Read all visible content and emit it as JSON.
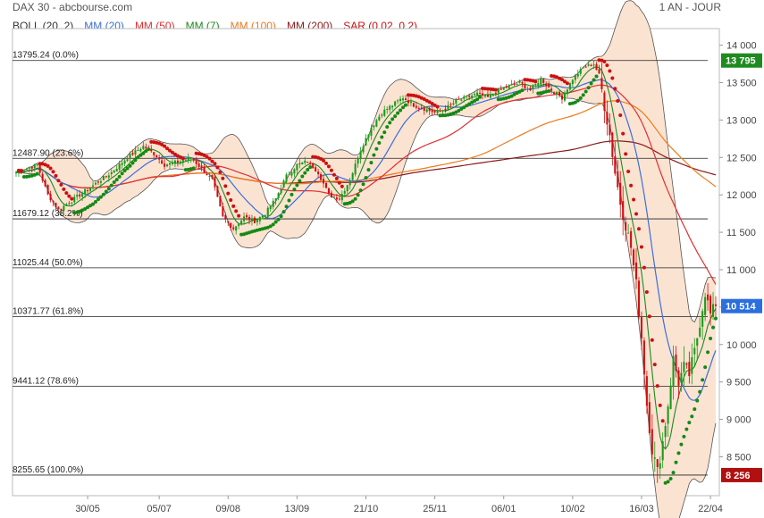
{
  "header": {
    "title": "DAX 30 - abcbourse.com",
    "period": "1 AN - JOUR"
  },
  "legend": [
    {
      "label": "BOLL (20, 2)",
      "color": "#333333"
    },
    {
      "label": "MM (20)",
      "color": "#3a6fd8"
    },
    {
      "label": "MM (50)",
      "color": "#e03030"
    },
    {
      "label": "MM (7)",
      "color": "#1c8a1c"
    },
    {
      "label": "MM (100)",
      "color": "#f07a1a"
    },
    {
      "label": "MM (200)",
      "color": "#8b1a1a"
    },
    {
      "label": "SAR (0.02, 0.2)",
      "color": "#cc1010"
    }
  ],
  "colors": {
    "up": "#1a9a1a",
    "down": "#d01010",
    "band_fill": "#fbe3d2",
    "band_line": "#555555",
    "mm7": "#1c8a1c",
    "mm20": "#3a6fd8",
    "mm50": "#e03030",
    "mm100": "#f07a1a",
    "mm200": "#8b1a1a",
    "sar_up": "#138a13",
    "sar_down": "#cc1010",
    "badge_last": "#2a6ee0",
    "badge_high": "#1f8a1f",
    "badge_low": "#b01010"
  },
  "chart_data": {
    "type": "candlestick",
    "ylim": [
      8100,
      14150
    ],
    "yticks": [
      {
        "value": 14000,
        "label": "14 000"
      },
      {
        "value": 13500,
        "label": "13 500"
      },
      {
        "value": 13000,
        "label": "13 000"
      },
      {
        "value": 12500,
        "label": "12 500"
      },
      {
        "value": 12000,
        "label": "12 000"
      },
      {
        "value": 11500,
        "label": "11 500"
      },
      {
        "value": 11000,
        "label": "11 000"
      },
      {
        "value": 10500,
        "label": "10 500"
      },
      {
        "value": 10000,
        "label": "10 000"
      },
      {
        "value": 9500,
        "label": "9 500"
      },
      {
        "value": 9000,
        "label": "9 000"
      },
      {
        "value": 8500,
        "label": "8 500"
      }
    ],
    "xticks": [
      {
        "index": 27,
        "label": "30/05"
      },
      {
        "index": 54,
        "label": "05/07"
      },
      {
        "index": 80,
        "label": "09/08"
      },
      {
        "index": 106,
        "label": "13/09"
      },
      {
        "index": 132,
        "label": "21/10"
      },
      {
        "index": 158,
        "label": "25/11"
      },
      {
        "index": 184,
        "label": "06/01"
      },
      {
        "index": 210,
        "label": "10/02"
      },
      {
        "index": 236,
        "label": "16/03"
      },
      {
        "index": 262,
        "label": "22/04"
      }
    ],
    "fibonacci": [
      {
        "value": 13795.24,
        "label": "13795.24  (0.0%)"
      },
      {
        "value": 12487.9,
        "label": "12487.90  (23.6%)"
      },
      {
        "value": 11679.12,
        "label": "11679.12  (38.2%)"
      },
      {
        "value": 11025.44,
        "label": "11025.44  (50.0%)"
      },
      {
        "value": 10371.77,
        "label": "10371.77  (61.8%)"
      },
      {
        "value": 9441.12,
        "label": "9441.12  (78.6%)"
      },
      {
        "value": 8255.65,
        "label": "8255.65  (100.0%)"
      }
    ],
    "badges": [
      {
        "value": 13795,
        "label": "13 795",
        "kind": "high"
      },
      {
        "value": 10514,
        "label": "10 514",
        "kind": "last"
      },
      {
        "value": 8256,
        "label": "8 256",
        "kind": "low"
      }
    ],
    "price_anchors": [
      [
        0,
        12300
      ],
      [
        8,
        12400
      ],
      [
        12,
        12000
      ],
      [
        16,
        11800
      ],
      [
        20,
        11900
      ],
      [
        26,
        12050
      ],
      [
        30,
        12150
      ],
      [
        36,
        12300
      ],
      [
        42,
        12500
      ],
      [
        48,
        12650
      ],
      [
        52,
        12550
      ],
      [
        56,
        12400
      ],
      [
        62,
        12450
      ],
      [
        66,
        12500
      ],
      [
        70,
        12350
      ],
      [
        74,
        12200
      ],
      [
        78,
        11700
      ],
      [
        82,
        11550
      ],
      [
        86,
        11700
      ],
      [
        90,
        11650
      ],
      [
        94,
        11750
      ],
      [
        98,
        11950
      ],
      [
        102,
        12250
      ],
      [
        106,
        12400
      ],
      [
        110,
        12450
      ],
      [
        114,
        12300
      ],
      [
        118,
        12000
      ],
      [
        122,
        11950
      ],
      [
        126,
        12200
      ],
      [
        130,
        12600
      ],
      [
        134,
        12900
      ],
      [
        138,
        13100
      ],
      [
        142,
        13200
      ],
      [
        146,
        13300
      ],
      [
        150,
        13200
      ],
      [
        154,
        13150
      ],
      [
        158,
        13100
      ],
      [
        162,
        13150
      ],
      [
        166,
        13250
      ],
      [
        170,
        13300
      ],
      [
        174,
        13350
      ],
      [
        178,
        13300
      ],
      [
        182,
        13400
      ],
      [
        186,
        13450
      ],
      [
        190,
        13500
      ],
      [
        194,
        13400
      ],
      [
        198,
        13550
      ],
      [
        202,
        13400
      ],
      [
        206,
        13300
      ],
      [
        210,
        13550
      ],
      [
        214,
        13700
      ],
      [
        218,
        13750
      ],
      [
        220,
        13600
      ],
      [
        222,
        13200
      ],
      [
        224,
        12800
      ],
      [
        226,
        12300
      ],
      [
        228,
        11900
      ],
      [
        230,
        11600
      ],
      [
        232,
        11300
      ],
      [
        234,
        10800
      ],
      [
        236,
        10100
      ],
      [
        238,
        9200
      ],
      [
        240,
        8600
      ],
      [
        242,
        8300
      ],
      [
        244,
        8700
      ],
      [
        246,
        9200
      ],
      [
        248,
        9800
      ],
      [
        250,
        9500
      ],
      [
        252,
        9700
      ],
      [
        254,
        9600
      ],
      [
        256,
        9900
      ],
      [
        258,
        10300
      ],
      [
        260,
        10700
      ],
      [
        262,
        10400
      ],
      [
        264,
        10514
      ]
    ],
    "count": 265
  }
}
